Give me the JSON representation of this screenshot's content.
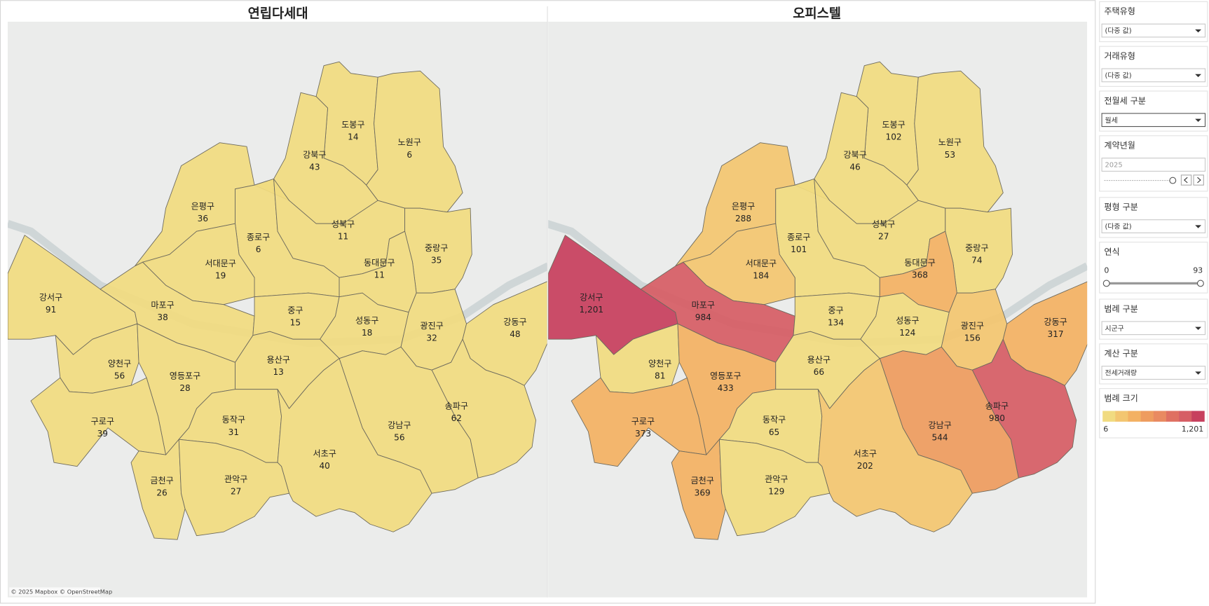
{
  "maps": [
    {
      "title": "연립다세대",
      "regions": [
        {
          "name": "도봉구",
          "value": 14
        },
        {
          "name": "노원구",
          "value": 6
        },
        {
          "name": "강북구",
          "value": 43
        },
        {
          "name": "은평구",
          "value": 36
        },
        {
          "name": "종로구",
          "value": 6
        },
        {
          "name": "성북구",
          "value": 11
        },
        {
          "name": "중랑구",
          "value": 35
        },
        {
          "name": "서대문구",
          "value": 19
        },
        {
          "name": "동대문구",
          "value": 11
        },
        {
          "name": "강서구",
          "value": 91
        },
        {
          "name": "마포구",
          "value": 38
        },
        {
          "name": "중구",
          "value": 15
        },
        {
          "name": "성동구",
          "value": 18
        },
        {
          "name": "광진구",
          "value": 32
        },
        {
          "name": "강동구",
          "value": 48
        },
        {
          "name": "양천구",
          "value": 56
        },
        {
          "name": "영등포구",
          "value": 28
        },
        {
          "name": "용산구",
          "value": 13
        },
        {
          "name": "송파구",
          "value": 62
        },
        {
          "name": "강남구",
          "value": 56
        },
        {
          "name": "구로구",
          "value": 39
        },
        {
          "name": "동작구",
          "value": 31
        },
        {
          "name": "서초구",
          "value": 40
        },
        {
          "name": "금천구",
          "value": 26
        },
        {
          "name": "관악구",
          "value": 27
        }
      ]
    },
    {
      "title": "오피스텔",
      "regions": [
        {
          "name": "도봉구",
          "value": 102
        },
        {
          "name": "노원구",
          "value": 53
        },
        {
          "name": "강북구",
          "value": 46
        },
        {
          "name": "은평구",
          "value": 288
        },
        {
          "name": "종로구",
          "value": 101
        },
        {
          "name": "성북구",
          "value": 27
        },
        {
          "name": "중랑구",
          "value": 74
        },
        {
          "name": "서대문구",
          "value": 184
        },
        {
          "name": "동대문구",
          "value": 368
        },
        {
          "name": "강서구",
          "value": {
            "value": 1201,
            "label": "1,201"
          }
        },
        {
          "name": "마포구",
          "value": 984
        },
        {
          "name": "중구",
          "value": 134
        },
        {
          "name": "성동구",
          "value": 124
        },
        {
          "name": "광진구",
          "value": 156
        },
        {
          "name": "강동구",
          "value": 317
        },
        {
          "name": "양천구",
          "value": 81
        },
        {
          "name": "영등포구",
          "value": 433
        },
        {
          "name": "용산구",
          "value": 66
        },
        {
          "name": "송파구",
          "value": 980
        },
        {
          "name": "강남구",
          "value": 544
        },
        {
          "name": "구로구",
          "value": 373
        },
        {
          "name": "동작구",
          "value": 65
        },
        {
          "name": "서초구",
          "value": 202
        },
        {
          "name": "금천구",
          "value": 369
        },
        {
          "name": "관악구",
          "value": 129
        }
      ]
    }
  ],
  "attribution": "© 2025 Mapbox © OpenStreetMap",
  "filters": [
    {
      "label": "주택유형",
      "value": "(다중 값)"
    },
    {
      "label": "거래유형",
      "value": "(다중 값)"
    },
    {
      "label": "전월세 구분",
      "value": "월세"
    },
    {
      "label": "계약년월",
      "value": "2025"
    },
    {
      "label": "평형 구분",
      "value": "(다중 값)"
    },
    {
      "label": "연식",
      "min": 0,
      "max": 93
    },
    {
      "label": "범례 구분",
      "value": "시군구"
    },
    {
      "label": "계산 구분",
      "value": "전세거래량"
    }
  ],
  "legend": {
    "title": "범례 크기",
    "min": 6,
    "max": {
      "value": 1201,
      "label": "1,201"
    }
  }
}
